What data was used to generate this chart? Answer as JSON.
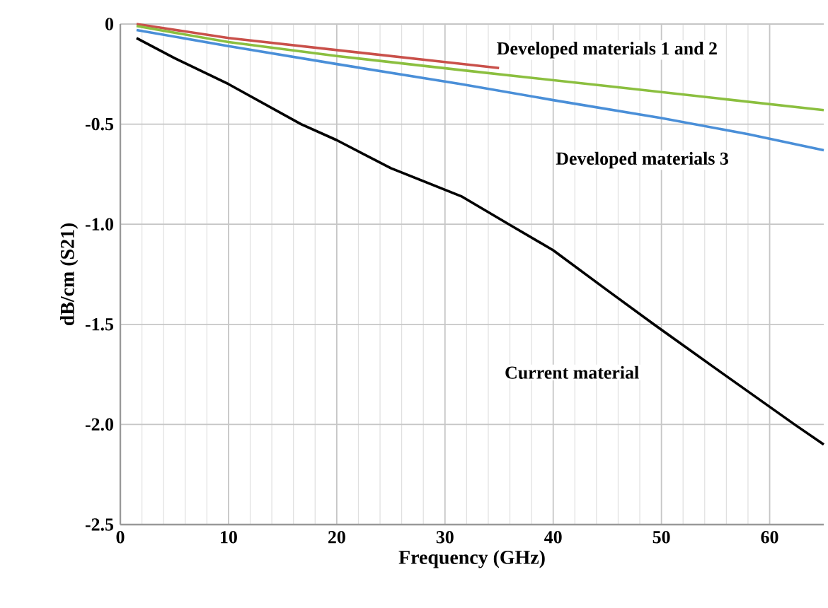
{
  "chart_data": {
    "type": "line",
    "xlabel": "Frequency (GHz)",
    "ylabel": "dB/cm (S21)",
    "xlim": [
      0,
      65
    ],
    "ylim": [
      -2.5,
      0
    ],
    "xticks": [
      0,
      10,
      20,
      30,
      40,
      50,
      60
    ],
    "yticks": [
      {
        "value": -2.5,
        "label": "-2.5"
      },
      {
        "value": -2,
        "label": "-2.0"
      },
      {
        "value": -1.5,
        "label": "-1.5"
      },
      {
        "value": -1,
        "label": "-1.0"
      },
      {
        "value": -0.5,
        "label": "-0.5"
      },
      0
    ],
    "grid": true,
    "marker": "none",
    "line_style": "solid",
    "series": [
      {
        "color": "#c9504a",
        "x": [
          1.5,
          10,
          20,
          30,
          35
        ],
        "values": [
          0,
          -0.07,
          -0.13,
          -0.19,
          -0.22
        ]
      },
      {
        "color": "#8bbf3f",
        "x": [
          1.5,
          10,
          20,
          31.5,
          45,
          55,
          65
        ],
        "values": [
          -0.01,
          -0.09,
          -0.16,
          -0.23,
          -0.31,
          -0.37,
          -0.43
        ]
      },
      {
        "color": "#4a8fd8",
        "x": [
          1.5,
          10,
          20,
          31.5,
          40,
          50,
          58,
          65
        ],
        "values": [
          -0.03,
          -0.11,
          -0.2,
          -0.3,
          -0.38,
          -0.47,
          -0.55,
          -0.63
        ]
      },
      {
        "color": "#000000",
        "x": [
          1.5,
          5,
          10,
          16.7,
          20,
          25,
          31.5,
          35.9,
          40,
          45,
          49.3,
          55,
          62.3,
          65
        ],
        "values": [
          -0.07,
          -0.17,
          -0.3,
          -0.5,
          -0.58,
          -0.72,
          -0.86,
          -1.0,
          -1.13,
          -1.33,
          -1.5,
          -1.72,
          -2.0,
          -2.1
        ]
      }
    ],
    "annotations": [
      "Developed materials 1 and 2",
      "Developed materials 3",
      "Current material"
    ]
  }
}
